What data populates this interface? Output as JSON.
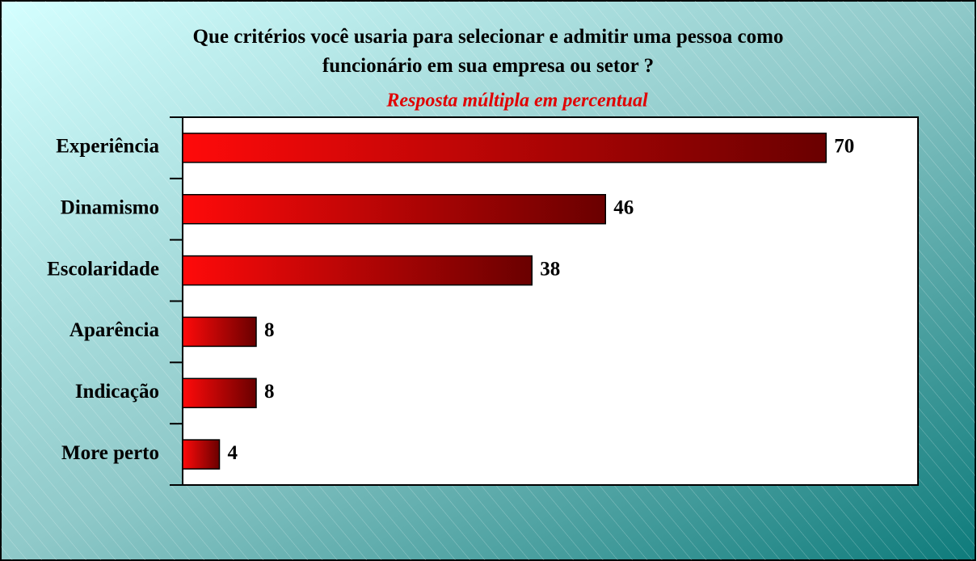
{
  "chart_data": {
    "type": "bar",
    "orientation": "horizontal",
    "title": "Que critérios você usaria para selecionar e admitir uma pessoa como funcionário em sua empresa ou setor ?",
    "subtitle": "Resposta múltipla em percentual",
    "categories": [
      "Experiência",
      "Dinamismo",
      "Escolaridade",
      "Aparência",
      "Indicação",
      "More perto"
    ],
    "values": [
      70,
      46,
      38,
      8,
      8,
      4
    ],
    "xlim": [
      0,
      80
    ]
  }
}
